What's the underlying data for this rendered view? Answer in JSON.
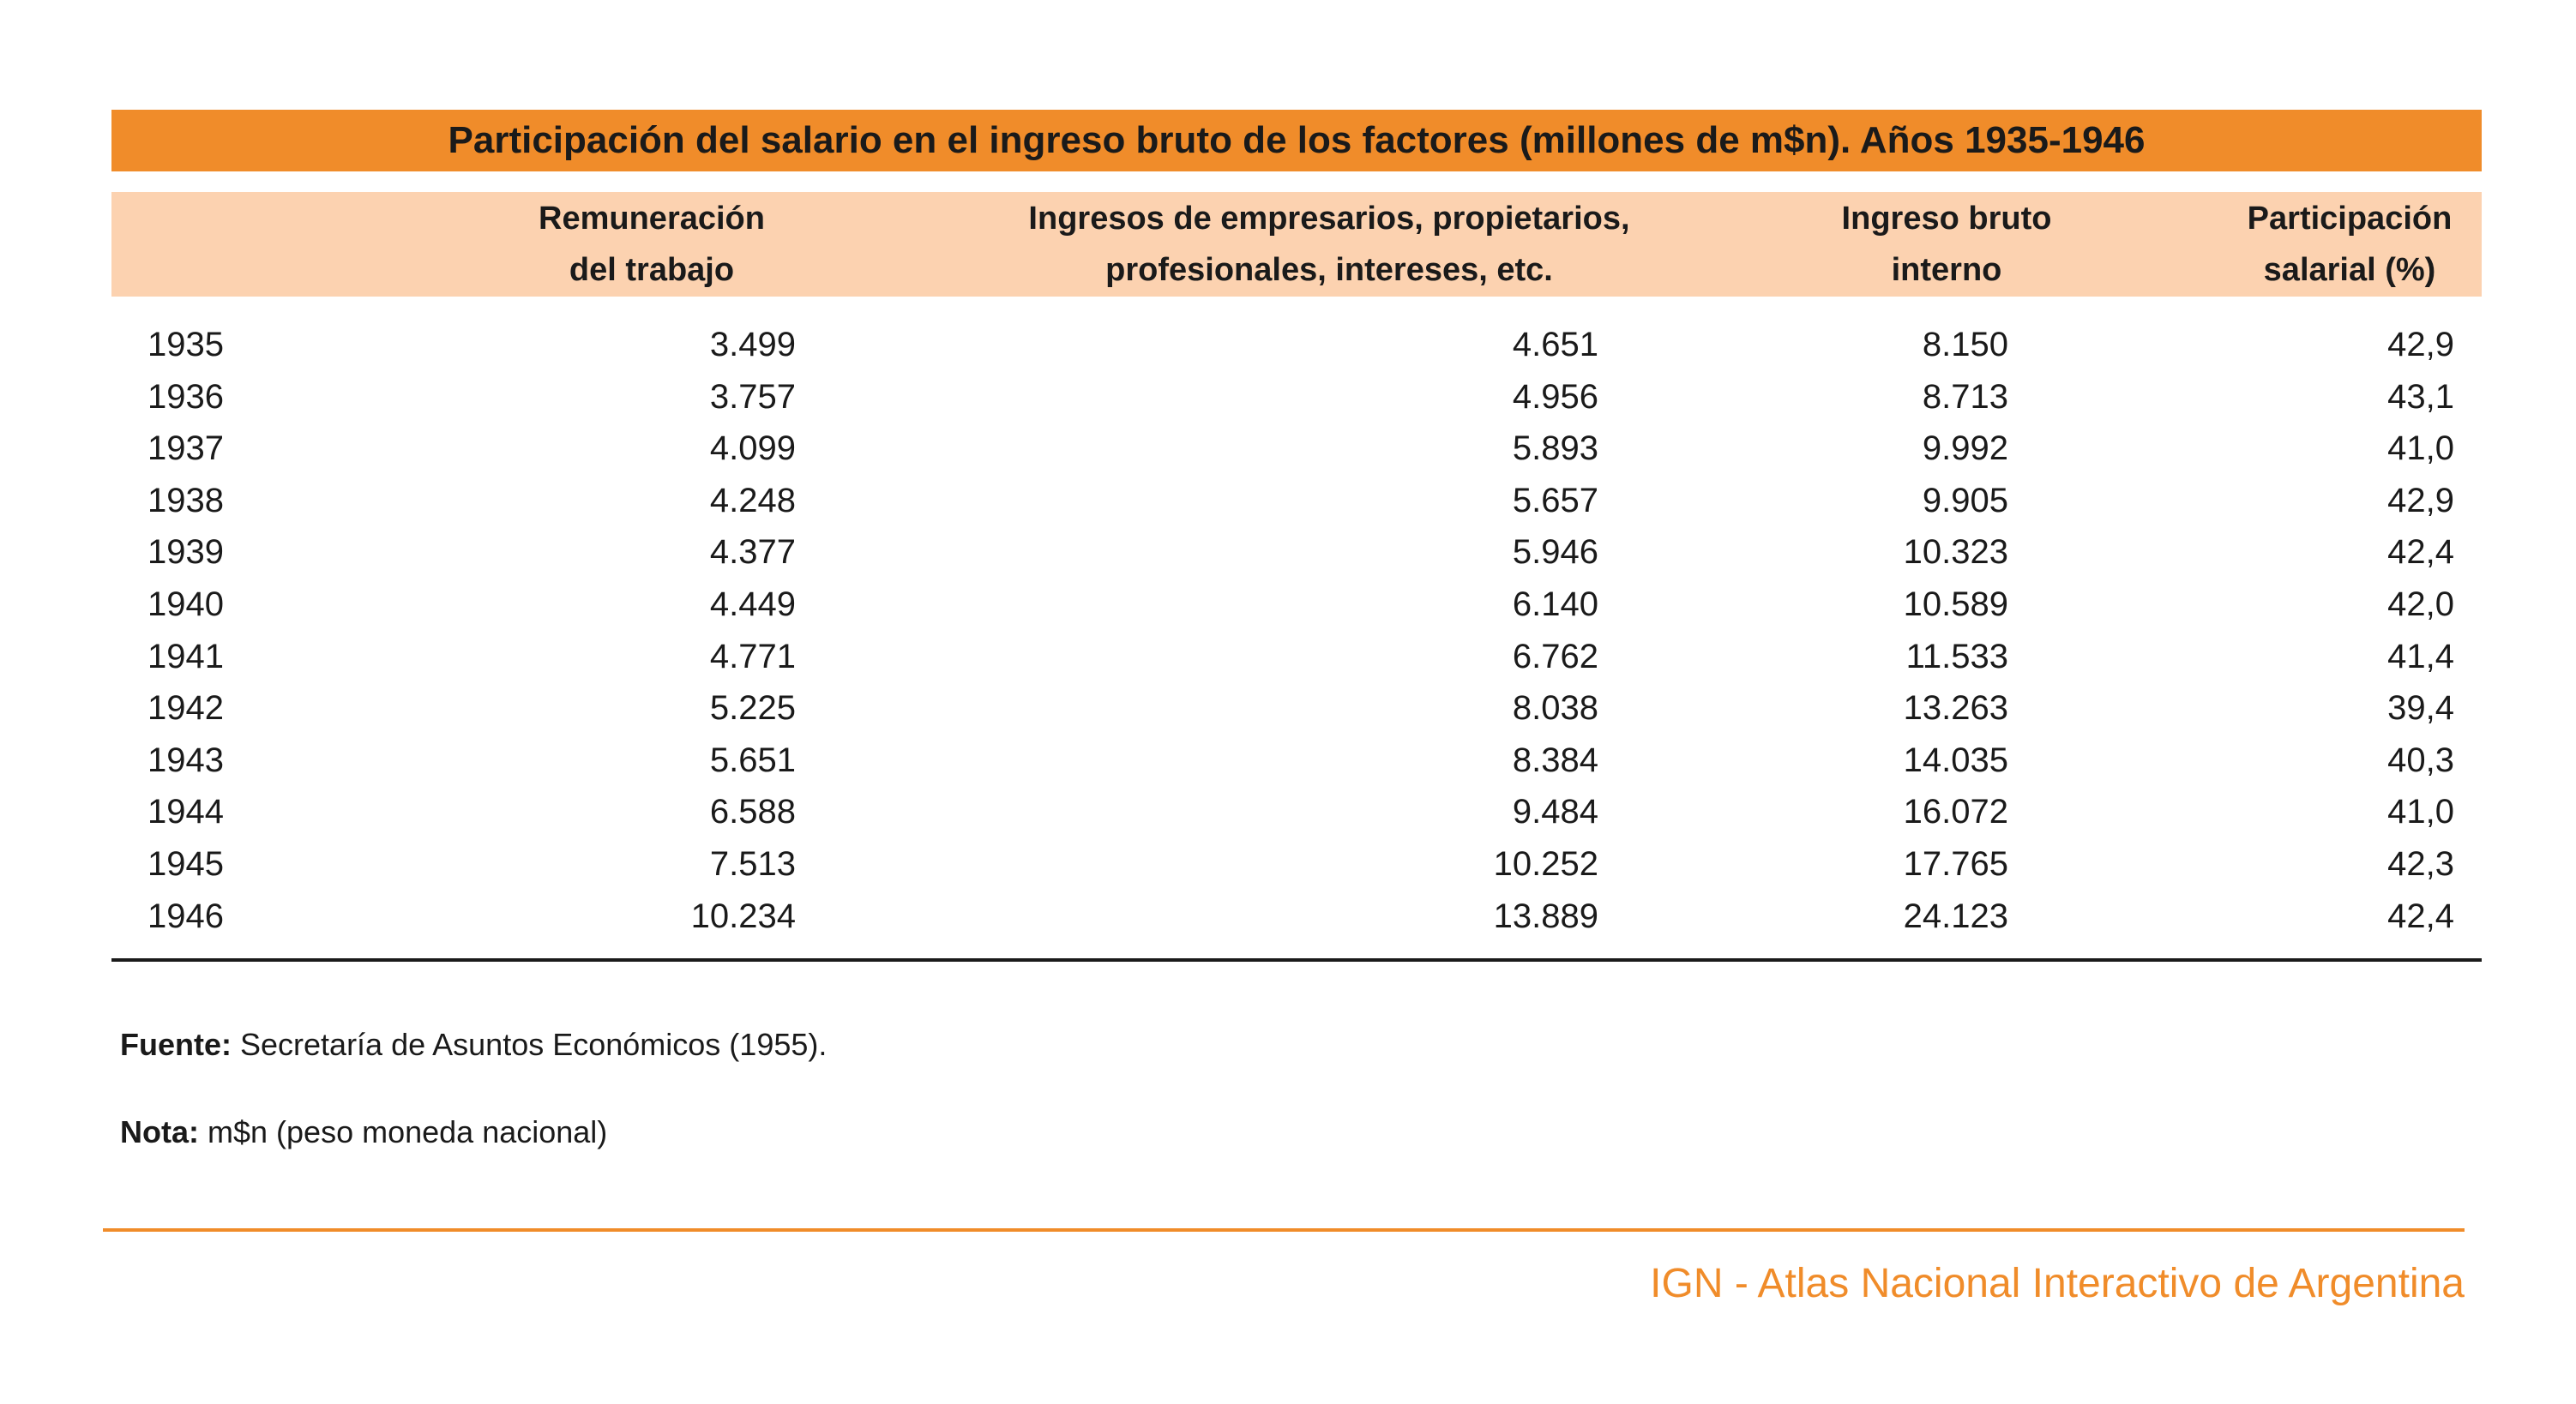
{
  "title": "Participación del salario en el ingreso bruto de los factores (millones de m$n). Años 1935-1946",
  "columns": [
    {
      "line1": "",
      "line2": ""
    },
    {
      "line1": "Remuneración",
      "line2": "del trabajo"
    },
    {
      "line1": "Ingresos de empresarios, propietarios,",
      "line2": "profesionales, intereses, etc."
    },
    {
      "line1": "Ingreso bruto",
      "line2": "interno"
    },
    {
      "line1": "Participación",
      "line2": "salarial (%)"
    }
  ],
  "rows": [
    [
      "1935",
      "3.499",
      "4.651",
      "8.150",
      "42,9"
    ],
    [
      "1936",
      "3.757",
      "4.956",
      "8.713",
      "43,1"
    ],
    [
      "1937",
      "4.099",
      "5.893",
      "9.992",
      "41,0"
    ],
    [
      "1938",
      "4.248",
      "5.657",
      "9.905",
      "42,9"
    ],
    [
      "1939",
      "4.377",
      "5.946",
      "10.323",
      "42,4"
    ],
    [
      "1940",
      "4.449",
      "6.140",
      "10.589",
      "42,0"
    ],
    [
      "1941",
      "4.771",
      "6.762",
      "11.533",
      "41,4"
    ],
    [
      "1942",
      "5.225",
      "8.038",
      "13.263",
      "39,4"
    ],
    [
      "1943",
      "5.651",
      "8.384",
      "14.035",
      "40,3"
    ],
    [
      "1944",
      "6.588",
      "9.484",
      "16.072",
      "41,0"
    ],
    [
      "1945",
      "7.513",
      "10.252",
      "17.765",
      "42,3"
    ],
    [
      "1946",
      "10.234",
      "13.889",
      "24.123",
      "42,4"
    ]
  ],
  "notes": {
    "source_label": "Fuente:",
    "source_text": " Secretaría de Asuntos Económicos (1955).",
    "note_label": "Nota:",
    "note_text": " m$n (peso moneda nacional)"
  },
  "footer": "IGN - Atlas Nacional Interactivo de Argentina",
  "colors": {
    "accent_orange": "#f08c2a",
    "header_peach": "#fcd2b0",
    "text": "#1a1a1a"
  }
}
